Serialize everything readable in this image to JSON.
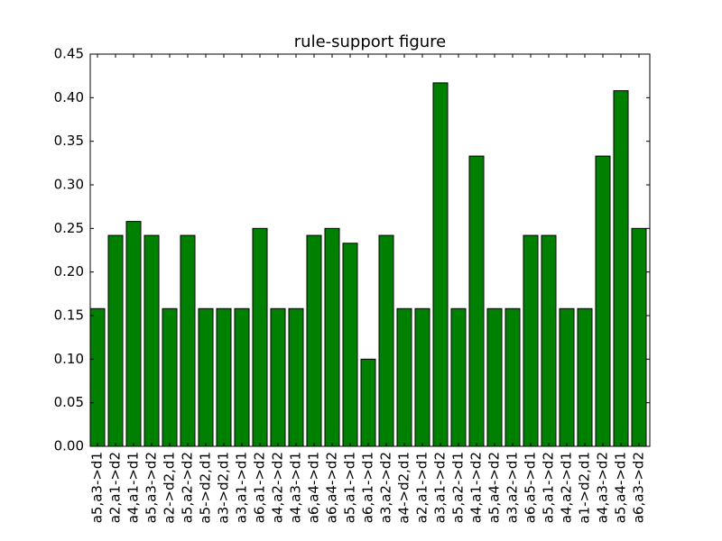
{
  "chart_data": {
    "type": "bar",
    "title": "rule-support figure",
    "xlabel": "",
    "ylabel": "",
    "categories": [
      "a5,a3->d1",
      "a2,a1->d2",
      "a4,a1->d1",
      "a5,a3->d2",
      "a2->d2,d1",
      "a5,a2->d2",
      "a5->d2,d1",
      "a3->d2,d1",
      "a3,a1->d1",
      "a6,a1->d2",
      "a4,a2->d2",
      "a4,a3->d1",
      "a6,a4->d1",
      "a6,a4->d2",
      "a5,a1->d1",
      "a6,a1->d1",
      "a3,a2->d2",
      "a4->d2,d1",
      "a2,a1->d1",
      "a3,a1->d2",
      "a5,a2->d1",
      "a4,a1->d2",
      "a5,a4->d2",
      "a3,a2->d1",
      "a6,a5->d1",
      "a5,a1->d2",
      "a4,a2->d1",
      "a1->d2,d1",
      "a4,a3->d2",
      "a5,a4->d1",
      "a6,a3->d2"
    ],
    "values": [
      0.158,
      0.242,
      0.258,
      0.242,
      0.158,
      0.242,
      0.158,
      0.158,
      0.158,
      0.25,
      0.158,
      0.158,
      0.242,
      0.25,
      0.233,
      0.1,
      0.242,
      0.158,
      0.158,
      0.417,
      0.158,
      0.333,
      0.158,
      0.158,
      0.242,
      0.242,
      0.158,
      0.158,
      0.333,
      0.408,
      0.25
    ],
    "ylim": [
      0,
      0.45
    ],
    "yticks": [
      "0.00",
      "0.05",
      "0.10",
      "0.15",
      "0.20",
      "0.25",
      "0.30",
      "0.35",
      "0.40",
      "0.45"
    ],
    "grid": false,
    "colors": {
      "bar": "#008000",
      "edge": "#000000"
    }
  }
}
